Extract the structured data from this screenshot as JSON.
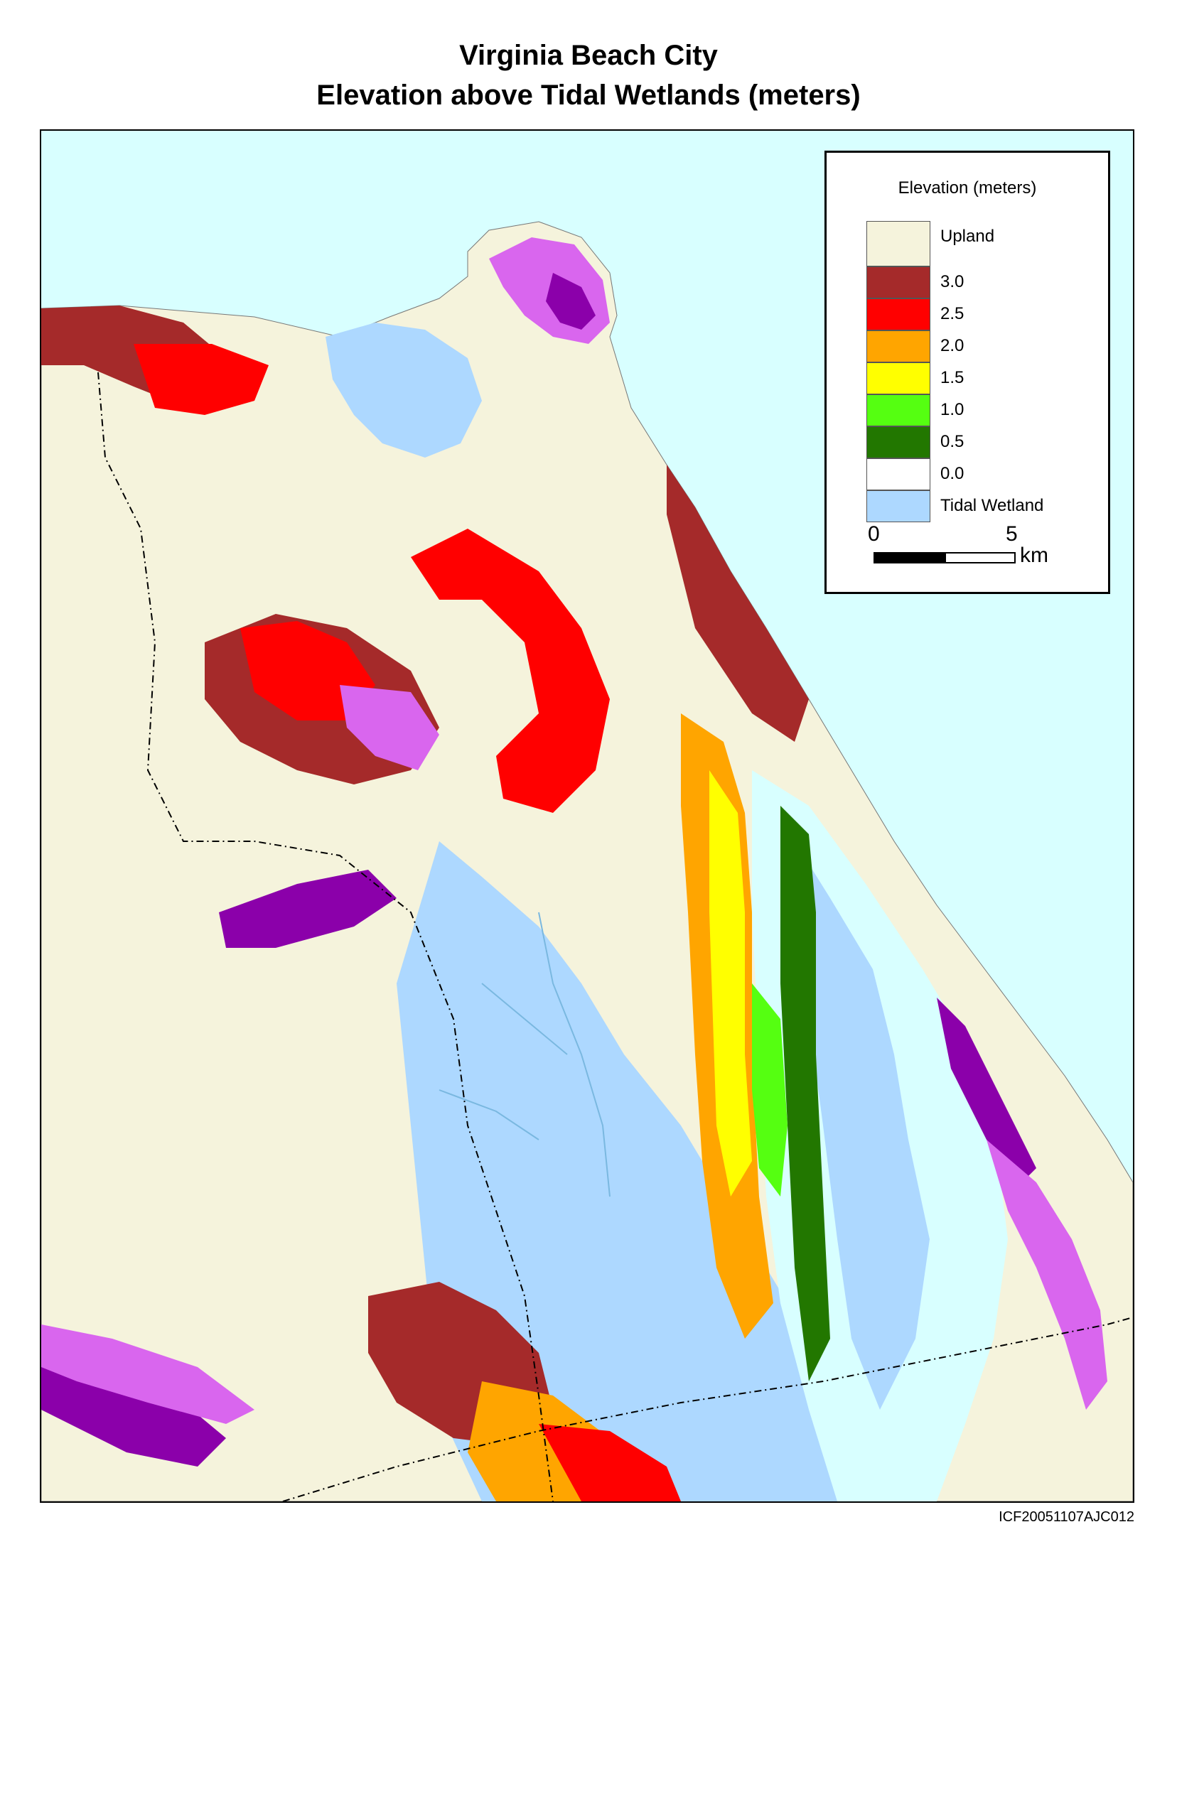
{
  "title": {
    "line1": "Virginia Beach City",
    "line2": "Elevation above Tidal Wetlands (meters)"
  },
  "legend": {
    "title": "Elevation (meters)",
    "items": [
      {
        "label": "Upland",
        "color": "#f5f3dc"
      },
      {
        "label": "3.0",
        "color": "#a52a2a"
      },
      {
        "label": "2.5",
        "color": "#ff0000"
      },
      {
        "label": "2.0",
        "color": "#ffa500"
      },
      {
        "label": "1.5",
        "color": "#ffff00"
      },
      {
        "label": "1.0",
        "color": "#55ff11"
      },
      {
        "label": "0.5",
        "color": "#227700"
      },
      {
        "label": "0.0",
        "color": "#ffffff"
      },
      {
        "label": "Tidal Wetland",
        "color": "#add8ff"
      }
    ]
  },
  "scale_bar": {
    "start_label": "0",
    "end_label": "5",
    "unit": "km"
  },
  "figure_id": "ICF20051107AJC012",
  "colors": {
    "water": "#d8ffff",
    "upland": "#f5f3dc",
    "tidal_wetland": "#add8ff",
    "purple": "#d966ee",
    "dark_purple": "#8b00aa"
  }
}
